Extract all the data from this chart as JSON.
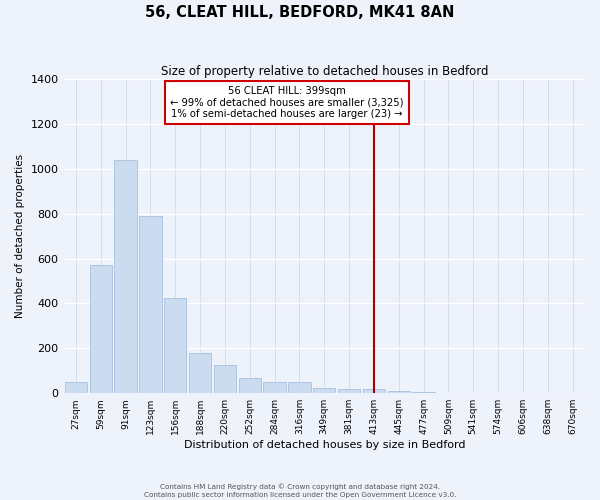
{
  "title": "56, CLEAT HILL, BEDFORD, MK41 8AN",
  "subtitle": "Size of property relative to detached houses in Bedford",
  "xlabel": "Distribution of detached houses by size in Bedford",
  "ylabel": "Number of detached properties",
  "bar_labels": [
    "27sqm",
    "59sqm",
    "91sqm",
    "123sqm",
    "156sqm",
    "188sqm",
    "220sqm",
    "252sqm",
    "284sqm",
    "316sqm",
    "349sqm",
    "381sqm",
    "413sqm",
    "445sqm",
    "477sqm",
    "509sqm",
    "541sqm",
    "574sqm",
    "606sqm",
    "638sqm",
    "670sqm"
  ],
  "bar_values": [
    50,
    570,
    1040,
    790,
    425,
    178,
    125,
    67,
    52,
    48,
    25,
    18,
    20,
    8,
    5,
    3,
    2,
    1,
    0,
    0,
    0
  ],
  "bar_color": "#ccdcf0",
  "bar_edge_color": "#a8c0dc",
  "vline_x_index": 12,
  "vline_color": "#aa0000",
  "annotation_title": "56 CLEAT HILL: 399sqm",
  "annotation_line1": "← 99% of detached houses are smaller (3,325)",
  "annotation_line2": "1% of semi-detached houses are larger (23) →",
  "annotation_box_color": "#ffffff",
  "annotation_box_edge": "#cc0000",
  "ylim": [
    0,
    1400
  ],
  "yticks": [
    0,
    200,
    400,
    600,
    800,
    1000,
    1200,
    1400
  ],
  "footer1": "Contains HM Land Registry data © Crown copyright and database right 2024.",
  "footer2": "Contains public sector information licensed under the Open Government Licence v3.0.",
  "bg_color": "#eef2fb"
}
